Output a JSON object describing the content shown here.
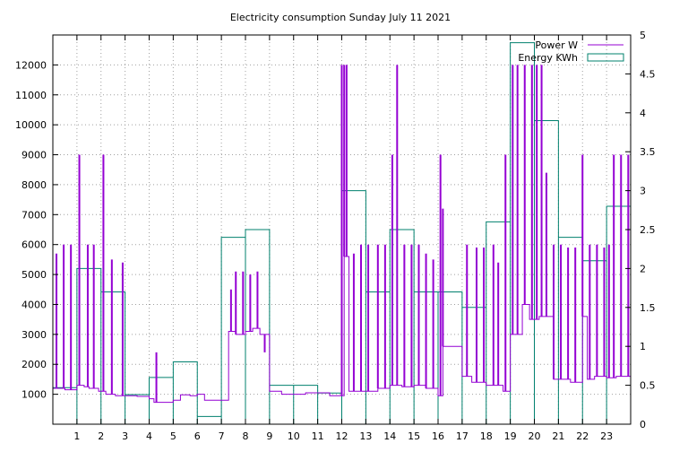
{
  "chart_data": {
    "type": "line",
    "title": "Electricity consumption Sunday July 11 2021",
    "xlabel": "",
    "ylabel": "",
    "y2label": "",
    "xlim": [
      0,
      24
    ],
    "ylim": [
      0,
      13000
    ],
    "y2lim": [
      0,
      5
    ],
    "x_ticks": [
      1,
      2,
      3,
      4,
      5,
      6,
      7,
      8,
      9,
      10,
      11,
      12,
      13,
      14,
      15,
      16,
      17,
      18,
      19,
      20,
      21,
      22,
      23
    ],
    "y_ticks": [
      1000,
      2000,
      3000,
      4000,
      5000,
      6000,
      7000,
      8000,
      9000,
      10000,
      11000,
      12000
    ],
    "y2_ticks": [
      0,
      0.5,
      1,
      1.5,
      2,
      2.5,
      3,
      3.5,
      4,
      4.5,
      5
    ],
    "grid": true,
    "legend": "top-right",
    "series": [
      {
        "name": "Power W",
        "axis": "left",
        "style": "line",
        "color": "#9400d3",
        "base": [
          [
            0.0,
            1200
          ],
          [
            0.5,
            1150
          ],
          [
            1.0,
            1300
          ],
          [
            1.3,
            1250
          ],
          [
            1.5,
            1200
          ],
          [
            1.9,
            1100
          ],
          [
            2.2,
            1000
          ],
          [
            2.6,
            950
          ],
          [
            3.0,
            950
          ],
          [
            3.5,
            930
          ],
          [
            4.0,
            850
          ],
          [
            4.2,
            730
          ],
          [
            4.5,
            730
          ],
          [
            5.0,
            800
          ],
          [
            5.3,
            980
          ],
          [
            5.7,
            950
          ],
          [
            6.0,
            1000
          ],
          [
            6.3,
            800
          ],
          [
            6.6,
            800
          ],
          [
            7.0,
            800
          ],
          [
            7.3,
            3100
          ],
          [
            7.6,
            3000
          ],
          [
            8.0,
            3100
          ],
          [
            8.3,
            3200
          ],
          [
            8.6,
            3000
          ],
          [
            9.0,
            1100
          ],
          [
            9.5,
            1000
          ],
          [
            10.0,
            1000
          ],
          [
            10.5,
            1050
          ],
          [
            11.0,
            1050
          ],
          [
            11.5,
            950
          ],
          [
            11.9,
            950
          ],
          [
            12.1,
            5600
          ],
          [
            12.3,
            1100
          ],
          [
            13.0,
            1100
          ],
          [
            13.5,
            1200
          ],
          [
            14.0,
            1300
          ],
          [
            14.5,
            1250
          ],
          [
            15.0,
            1300
          ],
          [
            15.5,
            1200
          ],
          [
            16.0,
            950
          ],
          [
            16.2,
            2600
          ],
          [
            16.8,
            2600
          ],
          [
            17.0,
            1600
          ],
          [
            17.4,
            1400
          ],
          [
            18.0,
            1300
          ],
          [
            18.4,
            1300
          ],
          [
            18.7,
            1100
          ],
          [
            19.0,
            3000
          ],
          [
            19.5,
            4000
          ],
          [
            19.8,
            3500
          ],
          [
            20.2,
            3600
          ],
          [
            20.5,
            3600
          ],
          [
            20.8,
            1500
          ],
          [
            21.2,
            1500
          ],
          [
            21.5,
            1400
          ],
          [
            21.8,
            1400
          ],
          [
            22.0,
            3600
          ],
          [
            22.2,
            1500
          ],
          [
            22.5,
            1600
          ],
          [
            23.0,
            1550
          ],
          [
            23.4,
            1600
          ],
          [
            23.7,
            1600
          ],
          [
            24.0,
            1600
          ]
        ],
        "spikes": [
          [
            0.15,
            5700
          ],
          [
            0.45,
            6000
          ],
          [
            0.75,
            6000
          ],
          [
            1.1,
            9000
          ],
          [
            1.45,
            6000
          ],
          [
            1.7,
            6000
          ],
          [
            2.1,
            9000
          ],
          [
            2.45,
            5500
          ],
          [
            2.9,
            5400
          ],
          [
            4.3,
            2400
          ],
          [
            7.4,
            4500
          ],
          [
            7.6,
            5100
          ],
          [
            7.9,
            5100
          ],
          [
            8.2,
            5000
          ],
          [
            8.5,
            5100
          ],
          [
            8.8,
            2400
          ],
          [
            12.0,
            12000
          ],
          [
            12.1,
            12000
          ],
          [
            12.2,
            12000
          ],
          [
            12.5,
            5700
          ],
          [
            12.8,
            6000
          ],
          [
            13.1,
            6000
          ],
          [
            13.5,
            6000
          ],
          [
            13.8,
            6000
          ],
          [
            14.1,
            9000
          ],
          [
            14.3,
            12000
          ],
          [
            14.6,
            6000
          ],
          [
            14.9,
            6000
          ],
          [
            15.2,
            6000
          ],
          [
            15.5,
            5700
          ],
          [
            15.8,
            5500
          ],
          [
            16.1,
            9000
          ],
          [
            16.2,
            7200
          ],
          [
            17.2,
            6000
          ],
          [
            17.6,
            5900
          ],
          [
            17.9,
            5900
          ],
          [
            18.3,
            6000
          ],
          [
            18.5,
            5400
          ],
          [
            18.8,
            9000
          ],
          [
            19.1,
            12000
          ],
          [
            19.3,
            12000
          ],
          [
            19.6,
            12000
          ],
          [
            19.9,
            12000
          ],
          [
            20.1,
            12000
          ],
          [
            20.3,
            12000
          ],
          [
            20.5,
            8400
          ],
          [
            20.8,
            6000
          ],
          [
            21.1,
            6000
          ],
          [
            21.4,
            5900
          ],
          [
            21.7,
            5900
          ],
          [
            22.0,
            9000
          ],
          [
            22.3,
            6000
          ],
          [
            22.6,
            6000
          ],
          [
            22.9,
            5900
          ],
          [
            23.1,
            6000
          ],
          [
            23.3,
            9000
          ],
          [
            23.6,
            9000
          ],
          [
            23.9,
            9000
          ]
        ]
      },
      {
        "name": "Energy KWh",
        "axis": "right",
        "style": "steps",
        "color": "#00806e",
        "x": [
          0,
          1,
          2,
          3,
          4,
          5,
          6,
          7,
          8,
          9,
          10,
          11,
          12,
          13,
          14,
          15,
          16,
          17,
          18,
          19,
          20,
          21,
          22,
          23
        ],
        "values": [
          0.47,
          2.0,
          1.7,
          0.38,
          0.6,
          0.8,
          0.1,
          2.4,
          2.5,
          0.5,
          0.5,
          0.4,
          3.0,
          1.7,
          2.5,
          1.7,
          1.7,
          1.5,
          2.6,
          4.9,
          3.9,
          2.4,
          2.1,
          2.8
        ]
      }
    ]
  }
}
